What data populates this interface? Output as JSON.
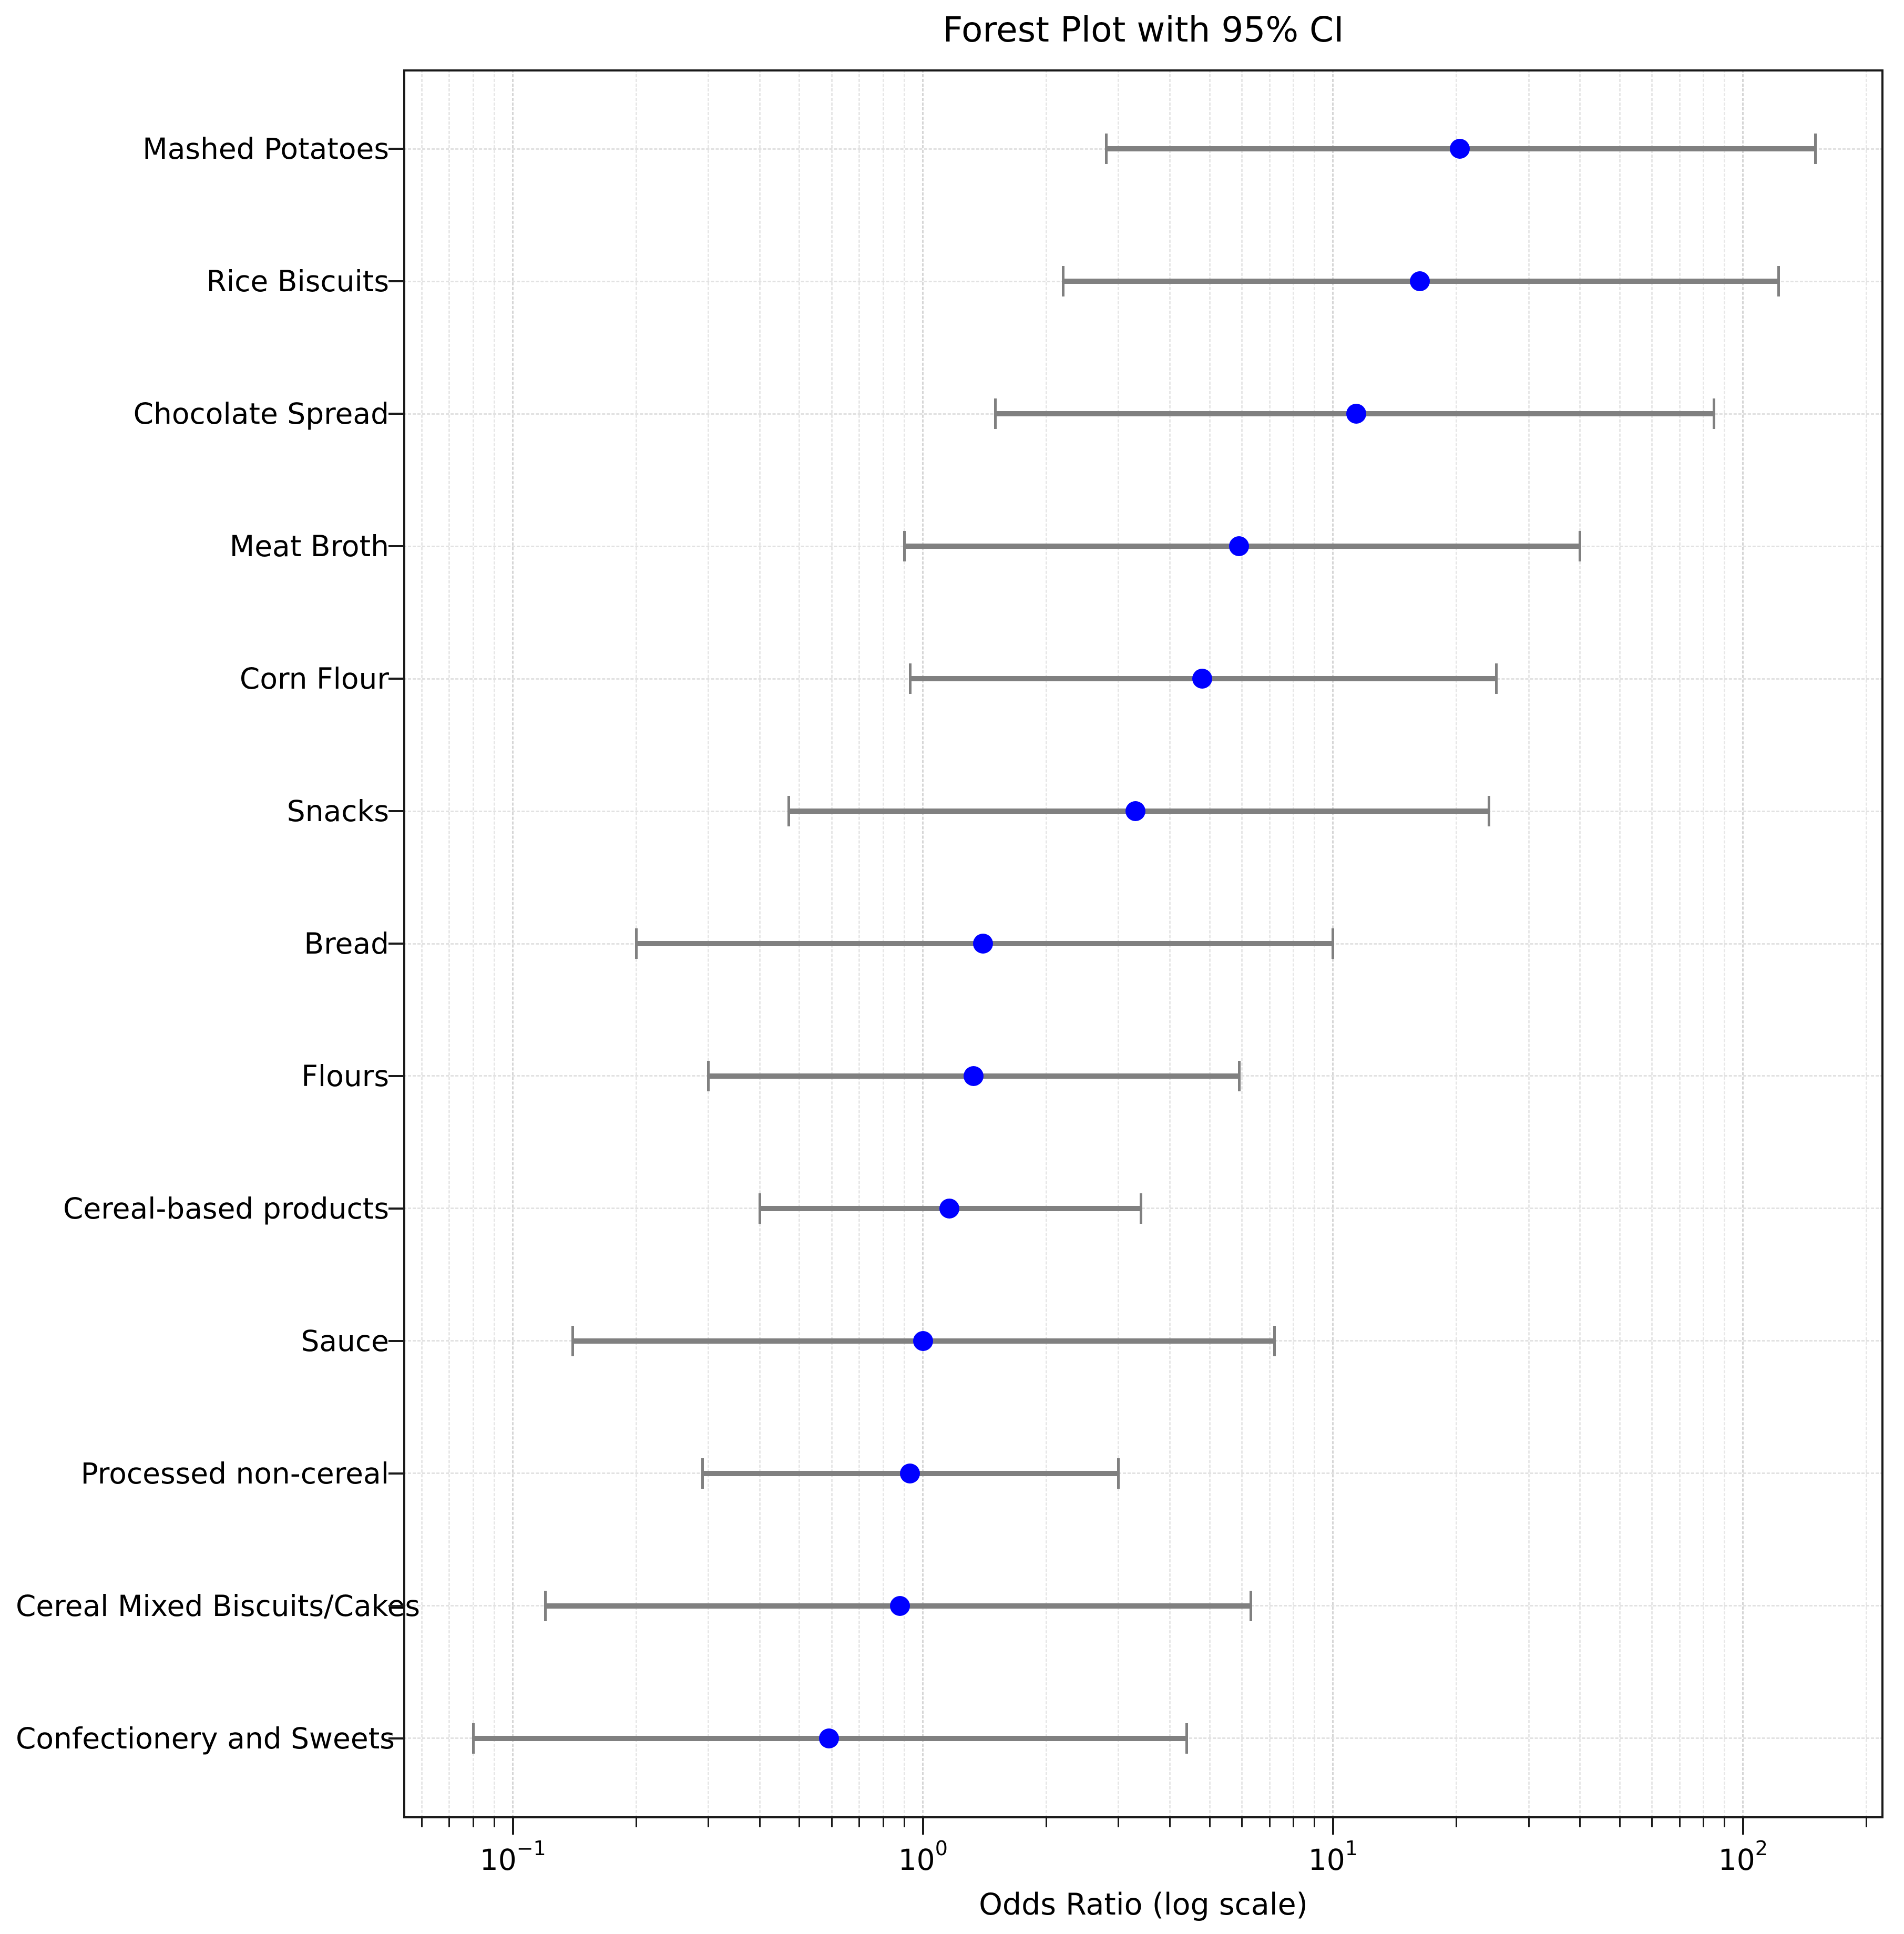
{
  "figure": {
    "title": "Forest Plot with 95% CI",
    "xlabel": "Odds Ratio (log scale)"
  },
  "chart_data": {
    "type": "scatter",
    "subtype": "forest-plot",
    "orientation": "horizontal",
    "x_scale": "log",
    "grid": true,
    "legend": false,
    "title": "Forest Plot with 95% CI",
    "xlabel": "Odds Ratio (log scale)",
    "ylabel": "",
    "xlim": [
      0.054,
      220
    ],
    "x_ticks": [
      {
        "value": 0.1,
        "base": "10",
        "exp": "−1"
      },
      {
        "value": 1,
        "base": "10",
        "exp": "0"
      },
      {
        "value": 10,
        "base": "10",
        "exp": "1"
      },
      {
        "value": 100,
        "base": "10",
        "exp": "2"
      }
    ],
    "rows": [
      {
        "label": "Mashed Potatoes",
        "or": 20.4,
        "ci_low": 2.8,
        "ci_high": 150
      },
      {
        "label": "Rice Biscuits",
        "or": 16.3,
        "ci_low": 2.2,
        "ci_high": 122
      },
      {
        "label": "Chocolate Spread",
        "or": 11.4,
        "ci_low": 1.5,
        "ci_high": 85
      },
      {
        "label": "Meat Broth",
        "or": 5.9,
        "ci_low": 0.9,
        "ci_high": 40
      },
      {
        "label": "Corn Flour",
        "or": 4.8,
        "ci_low": 0.93,
        "ci_high": 25
      },
      {
        "label": "Snacks",
        "or": 3.3,
        "ci_low": 0.47,
        "ci_high": 24
      },
      {
        "label": "Bread",
        "or": 1.4,
        "ci_low": 0.2,
        "ci_high": 10
      },
      {
        "label": "Flours",
        "or": 1.33,
        "ci_low": 0.3,
        "ci_high": 5.9
      },
      {
        "label": "Cereal-based products",
        "or": 1.16,
        "ci_low": 0.4,
        "ci_high": 3.4
      },
      {
        "label": "Sauce",
        "or": 1.0,
        "ci_low": 0.14,
        "ci_high": 7.2
      },
      {
        "label": "Processed non-cereal",
        "or": 0.93,
        "ci_low": 0.29,
        "ci_high": 3.0
      },
      {
        "label": "Cereal Mixed Biscuits/Cakes",
        "or": 0.88,
        "ci_low": 0.12,
        "ci_high": 6.3
      },
      {
        "label": "Confectionery and Sweets",
        "or": 0.59,
        "ci_low": 0.08,
        "ci_high": 4.4
      }
    ],
    "colors": {
      "point": "#0000ff",
      "ci": "#808080",
      "grid_major": "#d6d6d6",
      "grid_minor": "#e7e7e7",
      "frame": "#1a1a1a"
    }
  }
}
